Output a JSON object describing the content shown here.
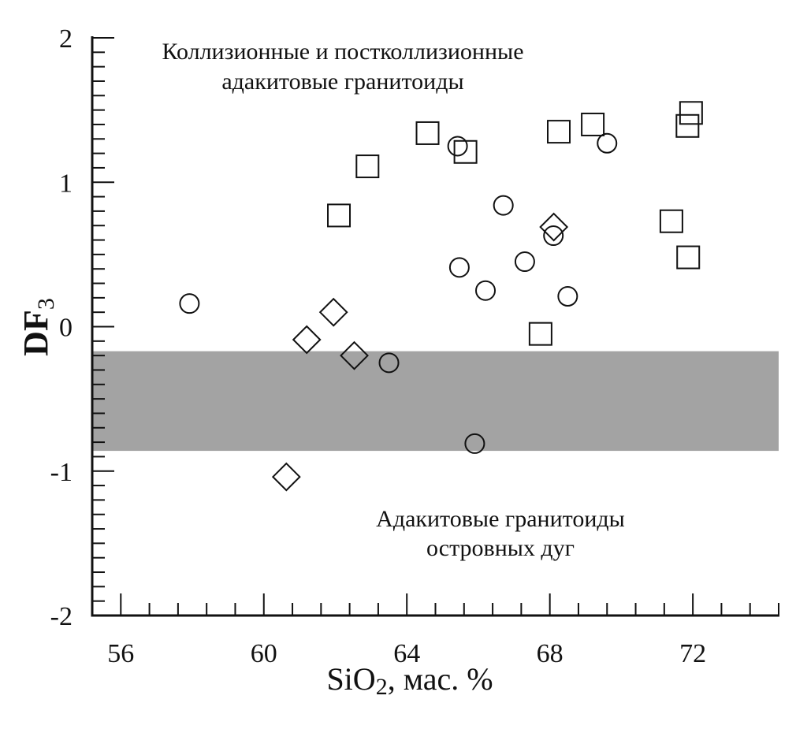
{
  "chart_data": {
    "type": "scatter",
    "xlabel": "SiO",
    "xlabel_sub": "2",
    "xlabel_suffix": ", мас. %",
    "ylabel": "DF",
    "ylabel_sub": "3",
    "xlim": [
      55.2,
      74.4
    ],
    "ylim": [
      -2,
      2
    ],
    "x_ticks": [
      56,
      60,
      64,
      68,
      72
    ],
    "x_tick_labels": [
      "56",
      "60",
      "64",
      "68",
      "72"
    ],
    "x_minor_step": 0.8,
    "y_ticks": [
      2,
      1,
      0,
      -1,
      -2
    ],
    "y_tick_labels": [
      "2",
      "1",
      "0",
      "-1",
      "-2"
    ],
    "y_minor_step": 0.1,
    "grid": false,
    "band": {
      "y_from": -0.86,
      "y_to": -0.17,
      "color": "#a3a3a3"
    },
    "annotations": [
      {
        "lines": [
          "Коллизионные и постколлизионные",
          "адакитовые гранитоиды"
        ]
      },
      {
        "lines": [
          "Адакитовые гранитоиды",
          "островных дуг"
        ]
      }
    ],
    "series": [
      {
        "marker": "circle",
        "points": [
          [
            57.92,
            0.16
          ],
          [
            65.42,
            1.25
          ],
          [
            69.6,
            1.27
          ],
          [
            66.7,
            0.84
          ],
          [
            68.1,
            0.63
          ],
          [
            65.47,
            0.41
          ],
          [
            67.3,
            0.45
          ],
          [
            66.2,
            0.25
          ],
          [
            68.5,
            0.21
          ],
          [
            63.5,
            -0.25
          ],
          [
            65.9,
            -0.81
          ]
        ]
      },
      {
        "marker": "square",
        "points": [
          [
            62.1,
            0.77
          ],
          [
            62.9,
            1.11
          ],
          [
            64.58,
            1.34
          ],
          [
            65.64,
            1.21
          ],
          [
            68.25,
            1.35
          ],
          [
            69.2,
            1.4
          ],
          [
            71.95,
            1.48
          ],
          [
            71.85,
            1.39
          ],
          [
            71.4,
            0.73
          ],
          [
            71.87,
            0.48
          ],
          [
            67.74,
            -0.05
          ]
        ]
      },
      {
        "marker": "diamond",
        "points": [
          [
            61.95,
            0.1
          ],
          [
            61.2,
            -0.09
          ],
          [
            62.53,
            -0.2
          ],
          [
            68.11,
            0.69
          ],
          [
            60.63,
            -1.04
          ]
        ]
      }
    ]
  }
}
